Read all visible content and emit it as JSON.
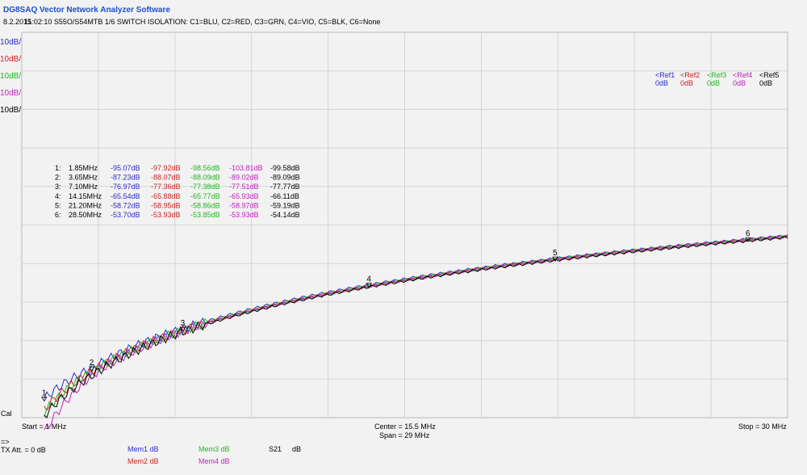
{
  "app": {
    "title": "DG8SAQ Vector Network Analyzer Software",
    "date": "8.2.2015",
    "time_desc": "11:02:10   S55O/S54MTB 1/6 SWITCH ISOLATION: C1=BLU, C2=RED, C3=GRN, C4=VIO, C5=BLK, C6=None"
  },
  "scales": [
    {
      "text": "10dB/",
      "color": "#2a2ad0"
    },
    {
      "text": "10dB/",
      "color": "#d02020"
    },
    {
      "text": "10dB/",
      "color": "#1fb81f"
    },
    {
      "text": "10dB/",
      "color": "#c020c0"
    },
    {
      "text": "10dB/",
      "color": "#000000"
    }
  ],
  "refs": [
    {
      "name": "<Ref1",
      "value": "0dB",
      "color": "#2a2ad0"
    },
    {
      "name": "<Ref2",
      "value": "0dB",
      "color": "#d02020"
    },
    {
      "name": "<Ref3",
      "value": "0dB",
      "color": "#1fb81f"
    },
    {
      "name": "<Ref4",
      "value": "0dB",
      "color": "#c020c0"
    },
    {
      "name": "<Ref5",
      "value": "0dB",
      "color": "#000000"
    }
  ],
  "markers_table": [
    {
      "id": "1:",
      "freq": "1.85MHz",
      "vals": [
        "-95.07dB",
        "-97.92dB",
        "-98.56dB",
        "-103.81dB",
        "-99.58dB"
      ]
    },
    {
      "id": "2:",
      "freq": "3.65MHz",
      "vals": [
        "-87.23dB",
        "-88.07dB",
        "-88.09dB",
        "-89.02dB",
        "-89.09dB"
      ]
    },
    {
      "id": "3:",
      "freq": "7.10MHz",
      "vals": [
        "-76.97dB",
        "-77.36dB",
        "-77.38dB",
        "-77.51dB",
        "-77.77dB"
      ]
    },
    {
      "id": "4:",
      "freq": "14.15MHz",
      "vals": [
        "-65.54dB",
        "-65.88dB",
        "-65.77dB",
        "-65.93dB",
        "-66.11dB"
      ]
    },
    {
      "id": "5:",
      "freq": "21.20MHz",
      "vals": [
        "-58.72dB",
        "-58.95dB",
        "-58.86dB",
        "-58.97dB",
        "-59.19dB"
      ]
    },
    {
      "id": "6:",
      "freq": "28.50MHz",
      "vals": [
        "-53.70dB",
        "-53.93dB",
        "-53.85dB",
        "-53.93dB",
        "-54.14dB"
      ]
    }
  ],
  "footer": {
    "cal": "Cal",
    "start": "Start = 1 MHz",
    "center": "Center = 15.5 MHz",
    "span": "Span = 29 MHz",
    "stop": "Stop = 30 MHz",
    "arrow": "=>",
    "txatt": "TX Att. = 0 dB",
    "mem1": "Mem1 dB",
    "mem2": "Mem2 dB",
    "mem3": "Mem3 dB",
    "mem4": "Mem4 dB",
    "s21": "S21",
    "s21_unit": "dB"
  },
  "chart_data": {
    "type": "line",
    "x_unit": "MHz",
    "xlim": [
      1,
      30
    ],
    "ylim": [
      -100,
      0
    ],
    "grid": true,
    "colors": [
      "#2a2ad0",
      "#d02020",
      "#1fb81f",
      "#c020c0",
      "#000000"
    ],
    "markers": [
      {
        "label": "1",
        "freq": 1.85
      },
      {
        "label": "2",
        "freq": 3.65
      },
      {
        "label": "3",
        "freq": 7.1
      },
      {
        "label": "4",
        "freq": 14.15
      },
      {
        "label": "5",
        "freq": 21.2
      },
      {
        "label": "6",
        "freq": 28.5
      }
    ],
    "series": [
      {
        "x": [
          1.85,
          3.65,
          7.1,
          14.15,
          21.2,
          28.5,
          30
        ],
        "y": [
          -95.07,
          -87.23,
          -76.97,
          -65.54,
          -58.72,
          -53.7,
          -52.8
        ]
      },
      {
        "x": [
          1.85,
          3.65,
          7.1,
          14.15,
          21.2,
          28.5,
          30
        ],
        "y": [
          -97.92,
          -88.07,
          -77.36,
          -65.88,
          -58.95,
          -53.93,
          -53.0
        ]
      },
      {
        "x": [
          1.85,
          3.65,
          7.1,
          14.15,
          21.2,
          28.5,
          30
        ],
        "y": [
          -98.56,
          -88.09,
          -77.38,
          -65.77,
          -58.86,
          -53.85,
          -52.9
        ]
      },
      {
        "x": [
          1.85,
          3.65,
          7.1,
          14.15,
          21.2,
          28.5,
          30
        ],
        "y": [
          -103.81,
          -89.02,
          -77.51,
          -65.93,
          -58.97,
          -53.93,
          -53.0
        ]
      },
      {
        "x": [
          1.85,
          3.65,
          7.1,
          14.15,
          21.2,
          28.5,
          30
        ],
        "y": [
          -99.58,
          -89.09,
          -77.77,
          -66.11,
          -59.19,
          -54.14,
          -53.2
        ]
      }
    ]
  }
}
